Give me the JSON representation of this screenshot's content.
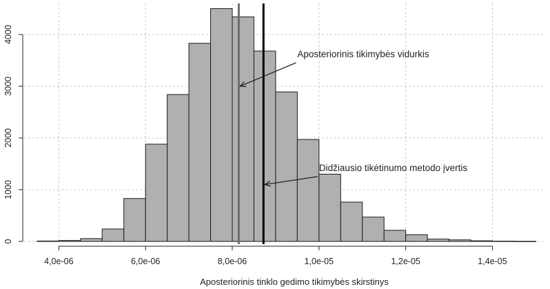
{
  "chart_data": {
    "type": "histogram",
    "xlabel": "Aposteriorinis tinklo gedimo tikimybės skirstinys",
    "ylabel": "",
    "xlim": [
      3.2e-06,
      1.52e-05
    ],
    "ylim": [
      0,
      4600
    ],
    "bin_width": 5e-07,
    "bins": [
      {
        "x0": 3.5e-06,
        "count": 8
      },
      {
        "x0": 4e-06,
        "count": 18
      },
      {
        "x0": 4.5e-06,
        "count": 55
      },
      {
        "x0": 5e-06,
        "count": 240
      },
      {
        "x0": 5.5e-06,
        "count": 830
      },
      {
        "x0": 6e-06,
        "count": 1880
      },
      {
        "x0": 6.5e-06,
        "count": 2840
      },
      {
        "x0": 7e-06,
        "count": 3830
      },
      {
        "x0": 7.5e-06,
        "count": 4500
      },
      {
        "x0": 8e-06,
        "count": 4340
      },
      {
        "x0": 8.5e-06,
        "count": 3680
      },
      {
        "x0": 9e-06,
        "count": 2890
      },
      {
        "x0": 9.5e-06,
        "count": 1970
      },
      {
        "x0": 1e-05,
        "count": 1300
      },
      {
        "x0": 1.05e-05,
        "count": 760
      },
      {
        "x0": 1.1e-05,
        "count": 470
      },
      {
        "x0": 1.15e-05,
        "count": 215
      },
      {
        "x0": 1.2e-05,
        "count": 130
      },
      {
        "x0": 1.25e-05,
        "count": 45
      },
      {
        "x0": 1.3e-05,
        "count": 30
      },
      {
        "x0": 1.35e-05,
        "count": 12
      },
      {
        "x0": 1.4e-05,
        "count": 5
      },
      {
        "x0": 1.45e-05,
        "count": 2
      }
    ],
    "x_ticks": [
      {
        "value": 4e-06,
        "label": "4,0e-06"
      },
      {
        "value": 6e-06,
        "label": "6,0e-06"
      },
      {
        "value": 8e-06,
        "label": "8,0e-06"
      },
      {
        "value": 1e-05,
        "label": "1,0e-05"
      },
      {
        "value": 1.2e-05,
        "label": "1,2e-05"
      },
      {
        "value": 1.4e-05,
        "label": "1,4e-05"
      }
    ],
    "y_ticks": [
      {
        "value": 0,
        "label": "0"
      },
      {
        "value": 1000,
        "label": "1000"
      },
      {
        "value": 2000,
        "label": "2000"
      },
      {
        "value": 3000,
        "label": "3000"
      },
      {
        "value": 4000,
        "label": "4000"
      }
    ],
    "grid": true,
    "vertical_lines": [
      {
        "x": 8.15e-06,
        "color": "#6e6e6e"
      },
      {
        "x": 8.72e-06,
        "color": "#000000"
      }
    ],
    "annotations": [
      {
        "text": "Aposteriorinis tikimybės vidurkis",
        "target_x": 8.15e-06,
        "target_y": 3000,
        "text_x": 9.5e-06,
        "text_y": 3560
      },
      {
        "text": "Didžiausio tikėtinumo metodo įvertis",
        "target_x": 8.72e-06,
        "target_y": 1100,
        "text_x": 1e-05,
        "text_y": 1360
      }
    ],
    "colors": {
      "bar_fill": "#b0b0b0",
      "bar_stroke": "#1a1a1a",
      "grid": "#c8c8c8",
      "axis": "#222222"
    }
  }
}
